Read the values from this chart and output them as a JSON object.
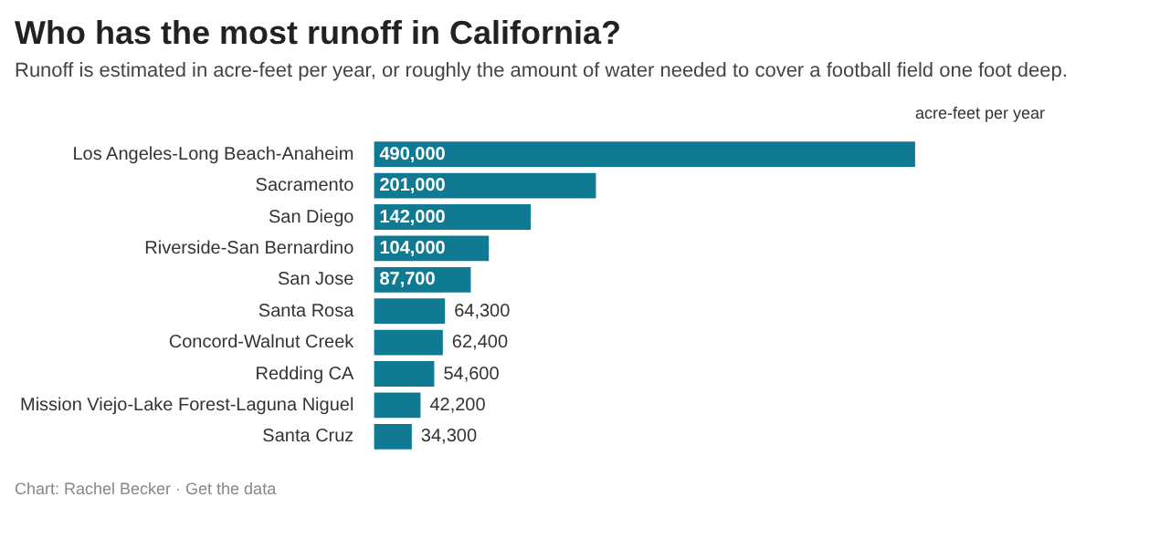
{
  "chart_data": {
    "type": "bar",
    "orientation": "horizontal",
    "title": "Who has the most runoff in California?",
    "subtitle": "Runoff is estimated in acre-feet per year, or roughly the amount of water needed to cover a football field one foot deep.",
    "xlabel": "acre-feet per year",
    "categories": [
      "Los Angeles-Long Beach-Anaheim",
      "Sacramento",
      "San Diego",
      "Riverside-San Bernardino",
      "San Jose",
      "Santa Rosa",
      "Concord-Walnut Creek",
      "Redding CA",
      "Mission Viejo-Lake Forest-Laguna Niguel",
      "Santa Cruz"
    ],
    "values": [
      490000,
      201000,
      142000,
      104000,
      87700,
      64300,
      62400,
      54600,
      42200,
      34300
    ],
    "value_labels": [
      "490,000",
      "201,000",
      "142,000",
      "104,000",
      "87,700",
      "64,300",
      "62,400",
      "54,600",
      "42,200",
      "34,300"
    ],
    "color": "#0f7a91",
    "annotations": [
      "Chart: Rachel Becker · Get the data"
    ]
  }
}
